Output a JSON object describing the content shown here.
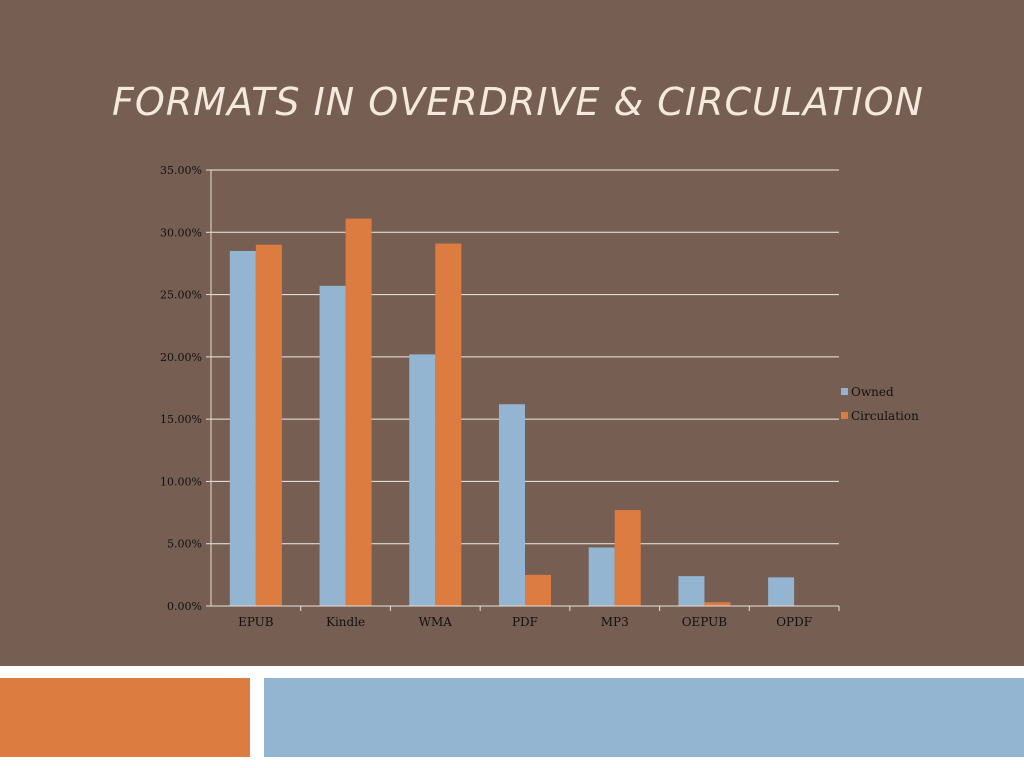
{
  "slide": {
    "title": "FORMATS IN OVERDRIVE & CIRCULATION",
    "colors": {
      "background": "#765e52",
      "title_text": "#f3e9dc",
      "accent_left": "#dc7c40",
      "accent_right": "#93b5d1"
    }
  },
  "chart_data": {
    "type": "bar",
    "categories": [
      "EPUB",
      "Kindle",
      "WMA",
      "PDF",
      "MP3",
      "OEPUB",
      "OPDF"
    ],
    "series": [
      {
        "name": "Owned",
        "color": "#93b5d1",
        "values": [
          28.5,
          25.7,
          20.2,
          16.2,
          4.7,
          2.4,
          2.3
        ]
      },
      {
        "name": "Circulation",
        "color": "#dc7c40",
        "values": [
          29.0,
          31.1,
          29.1,
          2.5,
          7.7,
          0.3,
          0.0
        ]
      }
    ],
    "yticks": [
      "0.00%",
      "5.00%",
      "10.00%",
      "15.00%",
      "20.00%",
      "25.00%",
      "30.00%",
      "35.00%"
    ],
    "ylim": [
      0,
      35
    ],
    "y_format": "percent",
    "grid": true,
    "legend_position": "right"
  }
}
